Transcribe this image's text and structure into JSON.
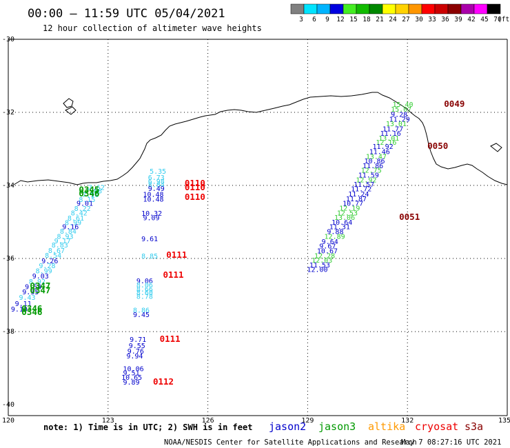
{
  "header": {
    "title": "00:00 – 11:59 UTC 05/04/2021",
    "subtitle": "12 hour collection of altimeter wave heights"
  },
  "legend": {
    "unit": "(ft)",
    "bins": [
      {
        "label": "3",
        "color": "#808080"
      },
      {
        "label": "6",
        "color": "#00e4ff"
      },
      {
        "label": "9",
        "color": "#00b4ff"
      },
      {
        "label": "12",
        "color": "#0000e0"
      },
      {
        "label": "15",
        "color": "#44ee22"
      },
      {
        "label": "18",
        "color": "#11bb00"
      },
      {
        "label": "21",
        "color": "#008800"
      },
      {
        "label": "24",
        "color": "#ffff00"
      },
      {
        "label": "27",
        "color": "#ffd200"
      },
      {
        "label": "30",
        "color": "#ff9600"
      },
      {
        "label": "33",
        "color": "#ff0000"
      },
      {
        "label": "36",
        "color": "#cc0000"
      },
      {
        "label": "39",
        "color": "#8b0000"
      },
      {
        "label": "42",
        "color": "#aa00aa"
      },
      {
        "label": "45",
        "color": "#ff00ff"
      },
      {
        "label": "70",
        "color": "#000000"
      }
    ]
  },
  "map": {
    "lat_labels": [
      "-30",
      "-32",
      "-34",
      "-36",
      "-38",
      "-40"
    ],
    "lon_labels": [
      "120",
      "123",
      "126",
      "129",
      "132",
      "135"
    ],
    "lon_range": [
      120,
      135
    ],
    "lat_range": [
      -30,
      -40.3
    ],
    "grid": "dotted",
    "grid_lons": [
      123,
      126,
      129,
      132
    ],
    "grid_lats": [
      -32,
      -34,
      -36,
      -38
    ]
  },
  "tracks": {
    "colors": {
      "cyan": "#33ccee",
      "blue": "#0000cc",
      "green": "#33cc33",
      "darkgreen": "#009900",
      "red": "#ee0000",
      "maroon": "#880000"
    },
    "west_cyan": [
      {
        "v": "7.62",
        "lon": 122.4,
        "lat": -34.12,
        "c": "cyan"
      },
      {
        "v": "7.88",
        "lon": 122.32,
        "lat": -34.22,
        "c": "cyan"
      },
      {
        "v": "7.96",
        "lon": 122.22,
        "lat": -34.32,
        "c": "cyan"
      },
      {
        "v": "8.15",
        "lon": 122.12,
        "lat": -34.45,
        "c": "cyan"
      },
      {
        "v": "9.01",
        "lon": 122.05,
        "lat": -34.56,
        "c": "blue"
      },
      {
        "v": "8.22",
        "lon": 121.98,
        "lat": -34.7,
        "c": "cyan"
      },
      {
        "v": "8.42",
        "lon": 121.88,
        "lat": -34.82,
        "c": "cyan"
      },
      {
        "v": "8.61",
        "lon": 121.78,
        "lat": -34.96,
        "c": "cyan"
      },
      {
        "v": "8.99",
        "lon": 121.7,
        "lat": -35.08,
        "c": "cyan"
      },
      {
        "v": "9.16",
        "lon": 121.62,
        "lat": -35.2,
        "c": "blue"
      },
      {
        "v": "8.84",
        "lon": 121.55,
        "lat": -35.32,
        "c": "cyan"
      },
      {
        "v": "8.93",
        "lon": 121.46,
        "lat": -35.46,
        "c": "cyan"
      },
      {
        "v": "9.17",
        "lon": 121.38,
        "lat": -35.58,
        "c": "cyan"
      },
      {
        "v": "8.83",
        "lon": 121.3,
        "lat": -35.7,
        "c": "cyan"
      },
      {
        "v": "8.67",
        "lon": 121.2,
        "lat": -35.85,
        "c": "cyan"
      },
      {
        "v": "8.54",
        "lon": 121.1,
        "lat": -35.98,
        "c": "cyan"
      },
      {
        "v": "9.26",
        "lon": 121.0,
        "lat": -36.13,
        "c": "blue"
      },
      {
        "v": "9.28",
        "lon": 120.92,
        "lat": -36.26,
        "c": "cyan"
      },
      {
        "v": "8.99",
        "lon": 120.82,
        "lat": -36.4,
        "c": "cyan"
      },
      {
        "v": "9.03",
        "lon": 120.72,
        "lat": -36.55,
        "c": "blue"
      },
      {
        "v": "8.92",
        "lon": 120.62,
        "lat": -36.7,
        "c": "cyan"
      },
      {
        "v": "9.54",
        "lon": 120.5,
        "lat": -36.84,
        "c": "blue"
      },
      {
        "v": "9.35",
        "lon": 120.42,
        "lat": -36.98,
        "c": "blue"
      },
      {
        "v": "9.43",
        "lon": 120.32,
        "lat": -37.13,
        "c": "cyan"
      },
      {
        "v": "9.11",
        "lon": 120.2,
        "lat": -37.3,
        "c": "blue"
      },
      {
        "v": "9.10",
        "lon": 120.08,
        "lat": -37.45,
        "c": "blue"
      }
    ],
    "west_times": [
      {
        "t": "0345",
        "lon": 122.12,
        "lat": -34.2,
        "c": "darkgreen"
      },
      {
        "t": "0346",
        "lon": 122.12,
        "lat": -34.3,
        "c": "darkgreen"
      },
      {
        "t": "0347",
        "lon": 120.65,
        "lat": -36.83,
        "c": "darkgreen"
      },
      {
        "t": "0347",
        "lon": 120.65,
        "lat": -36.95,
        "c": "darkgreen"
      },
      {
        "t": "0346",
        "lon": 120.4,
        "lat": -37.45,
        "c": "darkgreen"
      },
      {
        "t": "0346",
        "lon": 120.4,
        "lat": -37.55,
        "c": "darkgreen"
      }
    ],
    "mid": [
      {
        "v": "5.35",
        "lon": 124.25,
        "lat": -33.68,
        "c": "cyan"
      },
      {
        "v": "6.73",
        "lon": 124.2,
        "lat": -33.85,
        "c": "cyan"
      },
      {
        "v": "6.98",
        "lon": 124.2,
        "lat": -33.95,
        "c": "cyan"
      },
      {
        "v": "8.84",
        "lon": 124.2,
        "lat": -34.05,
        "c": "cyan"
      },
      {
        "v": "9.49",
        "lon": 124.2,
        "lat": -34.15,
        "c": "blue"
      },
      {
        "v": "10.48",
        "lon": 124.05,
        "lat": -34.31,
        "c": "blue"
      },
      {
        "v": "10.48",
        "lon": 124.05,
        "lat": -34.44,
        "c": "blue"
      },
      {
        "v": "10.32",
        "lon": 124.0,
        "lat": -34.83,
        "c": "blue"
      },
      {
        "v": "9.09",
        "lon": 124.05,
        "lat": -34.95,
        "c": "blue"
      },
      {
        "v": "9.61",
        "lon": 124.0,
        "lat": -35.53,
        "c": "blue"
      },
      {
        "v": "8.85",
        "lon": 124.0,
        "lat": -36.0,
        "c": "cyan"
      },
      {
        "v": "9.06",
        "lon": 123.85,
        "lat": -36.68,
        "c": "blue"
      },
      {
        "v": "8.06",
        "lon": 123.85,
        "lat": -36.79,
        "c": "cyan"
      },
      {
        "v": "8.66",
        "lon": 123.85,
        "lat": -36.9,
        "c": "cyan"
      },
      {
        "v": "8.60",
        "lon": 123.85,
        "lat": -37.0,
        "c": "cyan"
      },
      {
        "v": "8.78",
        "lon": 123.85,
        "lat": -37.1,
        "c": "cyan"
      },
      {
        "v": "8.86",
        "lon": 123.75,
        "lat": -37.48,
        "c": "cyan"
      },
      {
        "v": "9.45",
        "lon": 123.75,
        "lat": -37.6,
        "c": "blue"
      },
      {
        "v": "9.71",
        "lon": 123.65,
        "lat": -38.28,
        "c": "blue"
      },
      {
        "v": "9.55",
        "lon": 123.62,
        "lat": -38.45,
        "c": "blue"
      },
      {
        "v": "9.76",
        "lon": 123.58,
        "lat": -38.6,
        "c": "blue"
      },
      {
        "v": "9.94",
        "lon": 123.55,
        "lat": -38.73,
        "c": "blue"
      },
      {
        "v": "10.06",
        "lon": 123.45,
        "lat": -39.08,
        "c": "blue"
      },
      {
        "v": "9.51",
        "lon": 123.45,
        "lat": -39.2,
        "c": "blue"
      },
      {
        "v": "10.65",
        "lon": 123.4,
        "lat": -39.32,
        "c": "blue"
      },
      {
        "v": "9.89",
        "lon": 123.45,
        "lat": -39.45,
        "c": "blue"
      }
    ],
    "mid_times": [
      {
        "t": "0110",
        "lon": 125.3,
        "lat": -34.02,
        "c": "red"
      },
      {
        "t": "0110",
        "lon": 125.3,
        "lat": -34.13,
        "c": "red"
      },
      {
        "t": "0110",
        "lon": 125.3,
        "lat": -34.4,
        "c": "red"
      },
      {
        "t": "0111",
        "lon": 124.75,
        "lat": -35.98,
        "c": "red"
      },
      {
        "t": "0111",
        "lon": 124.65,
        "lat": -36.53,
        "c": "red"
      },
      {
        "t": "0111",
        "lon": 124.55,
        "lat": -38.28,
        "c": "red"
      },
      {
        "t": "0112",
        "lon": 124.35,
        "lat": -39.45,
        "c": "red"
      }
    ],
    "east": [
      {
        "v": "15.40",
        "lon": 131.55,
        "lat": -31.85,
        "c": "green"
      },
      {
        "v": "15.07",
        "lon": 131.5,
        "lat": -31.98,
        "c": "green"
      },
      {
        "v": "9.28",
        "lon": 131.5,
        "lat": -32.12,
        "c": "blue"
      },
      {
        "v": "11.29",
        "lon": 131.45,
        "lat": -32.25,
        "c": "blue"
      },
      {
        "v": "13.01",
        "lon": 131.35,
        "lat": -32.38,
        "c": "green"
      },
      {
        "v": "11.77",
        "lon": 131.25,
        "lat": -32.52,
        "c": "blue"
      },
      {
        "v": "11.16",
        "lon": 131.18,
        "lat": -32.64,
        "c": "blue"
      },
      {
        "v": "13.01",
        "lon": 131.13,
        "lat": -32.77,
        "c": "green"
      },
      {
        "v": "12.16",
        "lon": 131.05,
        "lat": -32.89,
        "c": "green"
      },
      {
        "v": "11.92",
        "lon": 130.95,
        "lat": -33.0,
        "c": "blue"
      },
      {
        "v": "11.46",
        "lon": 130.85,
        "lat": -33.14,
        "c": "blue"
      },
      {
        "v": "13.47",
        "lon": 130.75,
        "lat": -33.27,
        "c": "green"
      },
      {
        "v": "10.86",
        "lon": 130.7,
        "lat": -33.4,
        "c": "blue"
      },
      {
        "v": "11.86",
        "lon": 130.65,
        "lat": -33.53,
        "c": "blue"
      },
      {
        "v": "12.75",
        "lon": 130.6,
        "lat": -33.65,
        "c": "green"
      },
      {
        "v": "11.59",
        "lon": 130.52,
        "lat": -33.78,
        "c": "blue"
      },
      {
        "v": "12.92",
        "lon": 130.45,
        "lat": -33.91,
        "c": "green"
      },
      {
        "v": "11.57",
        "lon": 130.38,
        "lat": -34.04,
        "c": "blue"
      },
      {
        "v": "11.72",
        "lon": 130.3,
        "lat": -34.16,
        "c": "blue"
      },
      {
        "v": "11.24",
        "lon": 130.22,
        "lat": -34.3,
        "c": "blue"
      },
      {
        "v": "11.87",
        "lon": 130.15,
        "lat": -34.43,
        "c": "blue"
      },
      {
        "v": "10.77",
        "lon": 130.05,
        "lat": -34.56,
        "c": "blue"
      },
      {
        "v": "12.19",
        "lon": 129.95,
        "lat": -34.69,
        "c": "green"
      },
      {
        "v": "12.53",
        "lon": 129.88,
        "lat": -34.82,
        "c": "green"
      },
      {
        "v": "13.06",
        "lon": 129.8,
        "lat": -34.94,
        "c": "green"
      },
      {
        "v": "10.64",
        "lon": 129.72,
        "lat": -35.07,
        "c": "blue"
      },
      {
        "v": "11.31",
        "lon": 129.65,
        "lat": -35.2,
        "c": "blue"
      },
      {
        "v": "9.88",
        "lon": 129.58,
        "lat": -35.33,
        "c": "blue"
      },
      {
        "v": "12.89",
        "lon": 129.5,
        "lat": -35.46,
        "c": "green"
      },
      {
        "v": "9.64",
        "lon": 129.42,
        "lat": -35.6,
        "c": "blue"
      },
      {
        "v": "9.67",
        "lon": 129.35,
        "lat": -35.73,
        "c": "blue"
      },
      {
        "v": "10.67",
        "lon": 129.28,
        "lat": -35.86,
        "c": "blue"
      },
      {
        "v": "12.28",
        "lon": 129.2,
        "lat": -35.99,
        "c": "green"
      },
      {
        "v": "12.03",
        "lon": 129.12,
        "lat": -36.11,
        "c": "green"
      },
      {
        "v": "11.53",
        "lon": 129.05,
        "lat": -36.24,
        "c": "blue"
      },
      {
        "v": "12.00",
        "lon": 128.98,
        "lat": -36.37,
        "c": "blue"
      }
    ],
    "east_times": [
      {
        "t": "0049",
        "lon": 133.1,
        "lat": -31.85,
        "c": "maroon"
      },
      {
        "t": "0050",
        "lon": 132.6,
        "lat": -33.0,
        "c": "maroon"
      },
      {
        "t": "0051",
        "lon": 131.75,
        "lat": -34.94,
        "c": "maroon"
      }
    ]
  },
  "footer": {
    "note": "note: 1) Time is in UTC; 2) SWH is in feet",
    "satellites": [
      {
        "name": "jason2",
        "color": "#0000cc"
      },
      {
        "name": "jason3",
        "color": "#009900"
      },
      {
        "name": "altika",
        "color": "#ff9900"
      },
      {
        "name": "cryosat",
        "color": "#ee0000"
      },
      {
        "name": "s3a",
        "color": "#880000"
      }
    ],
    "credit_left": "NOAA/NESDIS Center for Satellite Applications and Research",
    "credit_right": "May  7 08:27:16 UTC 2021"
  }
}
